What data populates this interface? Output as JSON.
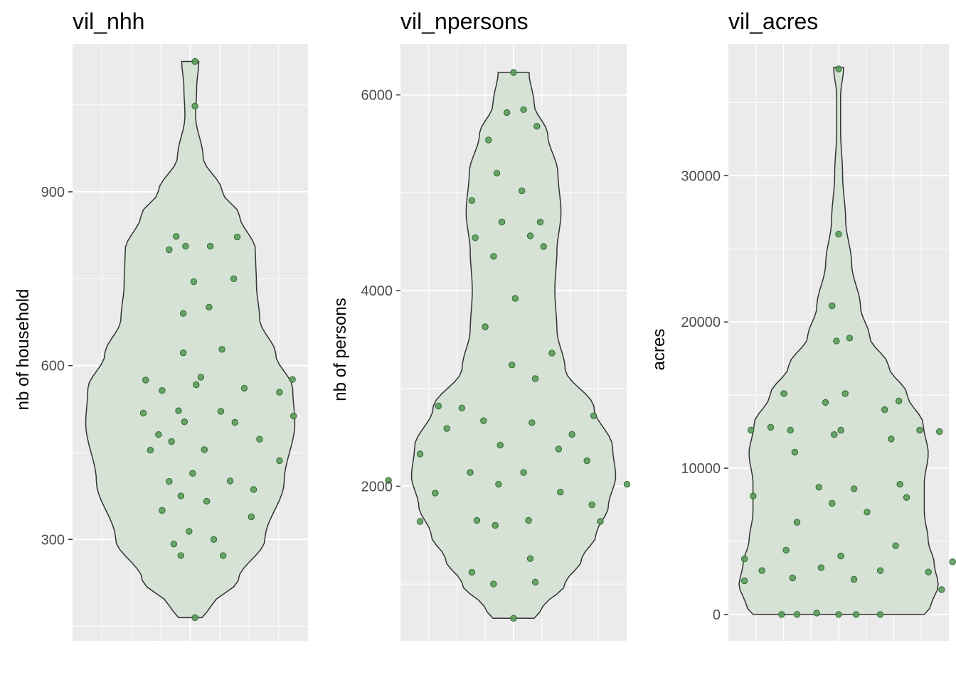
{
  "colors": {
    "panel_background": "#ebebeb",
    "grid": "#ffffff",
    "violin_fill": "#d5e2d5",
    "violin_stroke": "#333333",
    "point_fill": "#5d9c5d",
    "point_stroke": "#2e6b2e",
    "tick_text": "#4d4d4d"
  },
  "chart_data": [
    {
      "type": "violin",
      "title": "vil_nhh",
      "xlabel": "",
      "ylabel": "nb of household",
      "ylim": [
        125,
        1155
      ],
      "yticks": [
        300,
        600,
        900
      ],
      "yticklabels": [
        "300",
        "600",
        "900"
      ],
      "grid": true,
      "violin_range": [
        165,
        1125
      ],
      "violin_profile": [
        [
          165,
          0.11
        ],
        [
          185,
          0.2
        ],
        [
          230,
          0.45
        ],
        [
          300,
          0.7
        ],
        [
          400,
          0.88
        ],
        [
          500,
          0.98
        ],
        [
          560,
          0.96
        ],
        [
          620,
          0.8
        ],
        [
          680,
          0.65
        ],
        [
          740,
          0.62
        ],
        [
          800,
          0.61
        ],
        [
          860,
          0.46
        ],
        [
          900,
          0.3
        ],
        [
          960,
          0.12
        ],
        [
          1030,
          0.05
        ],
        [
          1080,
          0.06
        ],
        [
          1125,
          0.08
        ]
      ],
      "points": [
        [
          0.04,
          165
        ],
        [
          0.04,
          1125
        ],
        [
          0.04,
          1048
        ],
        [
          -0.38,
          575
        ],
        [
          -0.4,
          518
        ],
        [
          -0.34,
          454
        ],
        [
          -0.27,
          481
        ],
        [
          -0.24,
          557
        ],
        [
          -0.24,
          350
        ],
        [
          -0.18,
          400
        ],
        [
          -0.14,
          292
        ],
        [
          -0.16,
          469
        ],
        [
          -0.18,
          800
        ],
        [
          -0.1,
          522
        ],
        [
          -0.12,
          823
        ],
        [
          -0.08,
          375
        ],
        [
          -0.08,
          272
        ],
        [
          -0.06,
          622
        ],
        [
          -0.06,
          690
        ],
        [
          -0.05,
          503
        ],
        [
          -0.04,
          806
        ],
        [
          -0.01,
          314
        ],
        [
          0.02,
          414
        ],
        [
          0.03,
          745
        ],
        [
          0.05,
          567
        ],
        [
          0.09,
          580
        ],
        [
          0.12,
          455
        ],
        [
          0.14,
          366
        ],
        [
          0.16,
          701
        ],
        [
          0.17,
          806
        ],
        [
          0.2,
          300
        ],
        [
          0.26,
          521
        ],
        [
          0.27,
          628
        ],
        [
          0.28,
          272
        ],
        [
          0.34,
          401
        ],
        [
          0.37,
          750
        ],
        [
          0.38,
          502
        ],
        [
          0.4,
          822
        ],
        [
          0.46,
          561
        ],
        [
          0.54,
          386
        ],
        [
          0.52,
          339
        ],
        [
          0.59,
          473
        ],
        [
          0.76,
          554
        ],
        [
          0.76,
          436
        ],
        [
          0.87,
          576
        ],
        [
          0.88,
          513
        ]
      ]
    },
    {
      "type": "violin",
      "title": "vil_npersons",
      "xlabel": "",
      "ylabel": "nb of persons",
      "ylim": [
        420,
        6520
      ],
      "yticks": [
        2000,
        4000,
        6000
      ],
      "yticklabels": [
        "2000",
        "4000",
        "6000"
      ],
      "grid": true,
      "violin_range": [
        650,
        6230
      ],
      "violin_profile": [
        [
          650,
          0.2
        ],
        [
          750,
          0.28
        ],
        [
          1000,
          0.5
        ],
        [
          1250,
          0.66
        ],
        [
          1500,
          0.8
        ],
        [
          1800,
          0.92
        ],
        [
          2100,
          0.99
        ],
        [
          2400,
          0.96
        ],
        [
          2800,
          0.78
        ],
        [
          3200,
          0.5
        ],
        [
          3600,
          0.42
        ],
        [
          4000,
          0.4
        ],
        [
          4400,
          0.42
        ],
        [
          4800,
          0.46
        ],
        [
          5200,
          0.43
        ],
        [
          5600,
          0.33
        ],
        [
          5900,
          0.2
        ],
        [
          6230,
          0.15
        ]
      ],
      "points": [
        [
          0.0,
          650
        ],
        [
          0.0,
          6230
        ],
        [
          -0.08,
          5820
        ],
        [
          0.12,
          5850
        ],
        [
          0.28,
          5680
        ],
        [
          -0.3,
          5540
        ],
        [
          -0.2,
          5200
        ],
        [
          0.1,
          5020
        ],
        [
          -0.5,
          4920
        ],
        [
          0.32,
          4700
        ],
        [
          -0.14,
          4700
        ],
        [
          0.2,
          4560
        ],
        [
          -0.46,
          4540
        ],
        [
          0.36,
          4450
        ],
        [
          -0.24,
          4350
        ],
        [
          0.02,
          3920
        ],
        [
          -0.34,
          3630
        ],
        [
          0.46,
          3360
        ],
        [
          -0.02,
          3240
        ],
        [
          0.26,
          3100
        ],
        [
          -0.9,
          2820
        ],
        [
          -0.62,
          2800
        ],
        [
          0.96,
          2720
        ],
        [
          -0.36,
          2670
        ],
        [
          0.22,
          2650
        ],
        [
          -0.8,
          2590
        ],
        [
          -0.16,
          2420
        ],
        [
          0.54,
          2380
        ],
        [
          0.7,
          2530
        ],
        [
          0.88,
          2260
        ],
        [
          -1.12,
          2330
        ],
        [
          -0.52,
          2140
        ],
        [
          0.12,
          2140
        ],
        [
          -1.5,
          2060
        ],
        [
          1.36,
          2020
        ],
        [
          -0.18,
          2020
        ],
        [
          -0.94,
          1930
        ],
        [
          0.56,
          1940
        ],
        [
          -1.12,
          1640
        ],
        [
          -0.44,
          1650
        ],
        [
          -0.22,
          1600
        ],
        [
          0.18,
          1650
        ],
        [
          0.94,
          1810
        ],
        [
          1.04,
          1640
        ],
        [
          -0.5,
          1120
        ],
        [
          0.2,
          1260
        ],
        [
          -0.24,
          1000
        ],
        [
          0.26,
          1020
        ]
      ]
    },
    {
      "type": "violin",
      "title": "vil_acres",
      "xlabel": "",
      "ylabel": "acres",
      "ylim": [
        -1800,
        39000
      ],
      "yticks": [
        0,
        10000,
        20000,
        30000
      ],
      "yticklabels": [
        "0",
        "10000",
        "20000",
        "30000"
      ],
      "grid": true,
      "violin_range": [
        0,
        37400
      ],
      "violin_profile": [
        [
          0,
          0.86
        ],
        [
          600,
          0.93
        ],
        [
          2000,
          1.0
        ],
        [
          3500,
          0.96
        ],
        [
          5000,
          0.9
        ],
        [
          7000,
          0.86
        ],
        [
          9000,
          0.86
        ],
        [
          11000,
          0.9
        ],
        [
          13000,
          0.85
        ],
        [
          15000,
          0.69
        ],
        [
          17000,
          0.5
        ],
        [
          19000,
          0.31
        ],
        [
          21000,
          0.22
        ],
        [
          24000,
          0.13
        ],
        [
          27000,
          0.07
        ],
        [
          30000,
          0.04
        ],
        [
          33000,
          0.02
        ],
        [
          35500,
          0.02
        ],
        [
          37400,
          0.05
        ]
      ],
      "points": [
        [
          0.0,
          37300
        ],
        [
          0.0,
          26000
        ],
        [
          -0.06,
          21100
        ],
        [
          -0.02,
          18700
        ],
        [
          0.1,
          18900
        ],
        [
          -0.5,
          15100
        ],
        [
          -0.12,
          14500
        ],
        [
          0.06,
          15100
        ],
        [
          0.55,
          14600
        ],
        [
          -0.8,
          12600
        ],
        [
          -0.62,
          12800
        ],
        [
          -0.44,
          12600
        ],
        [
          -0.04,
          12300
        ],
        [
          0.02,
          12600
        ],
        [
          0.42,
          14000
        ],
        [
          0.48,
          12000
        ],
        [
          0.74,
          12600
        ],
        [
          0.92,
          12500
        ],
        [
          -0.4,
          11100
        ],
        [
          -0.18,
          8700
        ],
        [
          0.14,
          8600
        ],
        [
          0.56,
          8900
        ],
        [
          0.62,
          8000
        ],
        [
          -0.78,
          8100
        ],
        [
          -0.38,
          6300
        ],
        [
          0.26,
          7000
        ],
        [
          -0.06,
          7600
        ],
        [
          -0.86,
          3800
        ],
        [
          -0.7,
          3000
        ],
        [
          -0.48,
          4400
        ],
        [
          -0.42,
          2500
        ],
        [
          -0.16,
          3200
        ],
        [
          0.02,
          4000
        ],
        [
          0.38,
          3000
        ],
        [
          0.52,
          4700
        ],
        [
          0.82,
          2900
        ],
        [
          0.94,
          1700
        ],
        [
          1.04,
          3600
        ],
        [
          -0.86,
          2300
        ],
        [
          0.14,
          2400
        ],
        [
          -0.52,
          0
        ],
        [
          -0.38,
          0
        ],
        [
          -0.2,
          100
        ],
        [
          0.0,
          0
        ],
        [
          0.16,
          0
        ],
        [
          0.38,
          0
        ]
      ]
    }
  ]
}
